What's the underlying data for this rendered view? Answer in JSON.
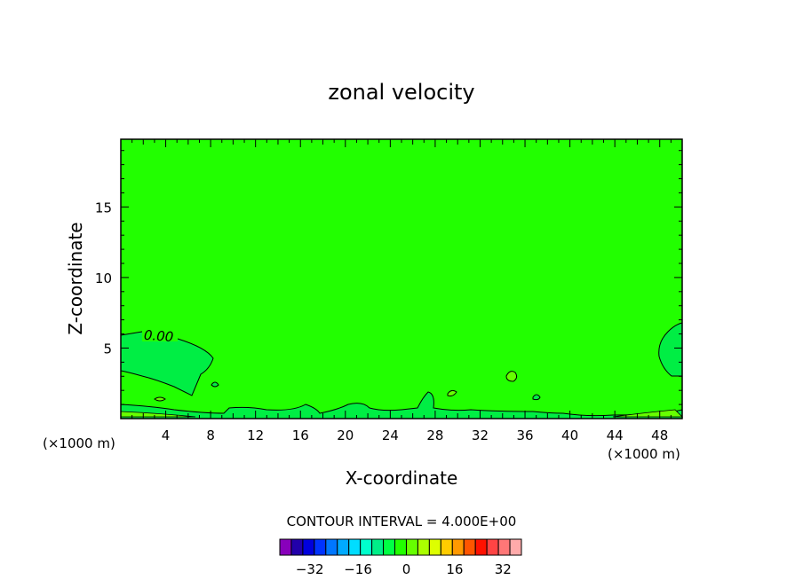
{
  "chart_data": {
    "type": "contour",
    "title": "zonal velocity",
    "xlabel": "X-coordinate",
    "ylabel": "Z-coordinate",
    "x_unit": "(×1000 m)",
    "x_ticks": [
      4,
      8,
      12,
      16,
      20,
      24,
      28,
      32,
      36,
      40,
      44,
      48
    ],
    "xlim": [
      0,
      50
    ],
    "y_ticks": [
      5,
      10,
      15
    ],
    "ylim": [
      0,
      19.8
    ],
    "contour_label": "0.00",
    "contour_interval_text": "CONTOUR INTERVAL = 4.000E+00",
    "field_fill_color": "#22ff00",
    "colorbar": {
      "levels": [
        -40,
        -36,
        -32,
        -28,
        -24,
        -20,
        -16,
        -12,
        -8,
        -4,
        0,
        4,
        8,
        12,
        16,
        20,
        24,
        28,
        32,
        36,
        40
      ],
      "colors": [
        "#8800bb",
        "#2200aa",
        "#0000dd",
        "#0033ff",
        "#0077ff",
        "#00aaff",
        "#00ddff",
        "#00ffcc",
        "#00ee88",
        "#00ff44",
        "#22ff00",
        "#66ff00",
        "#aaff00",
        "#ddff00",
        "#ffcc00",
        "#ff9900",
        "#ff5500",
        "#ff1100",
        "#ff4444",
        "#ff7777",
        "#ffaaaa"
      ],
      "tick_labels": [
        "−32",
        "−16",
        "0",
        "16",
        "32"
      ],
      "tick_values": [
        -32,
        -16,
        0,
        16,
        32
      ]
    }
  }
}
